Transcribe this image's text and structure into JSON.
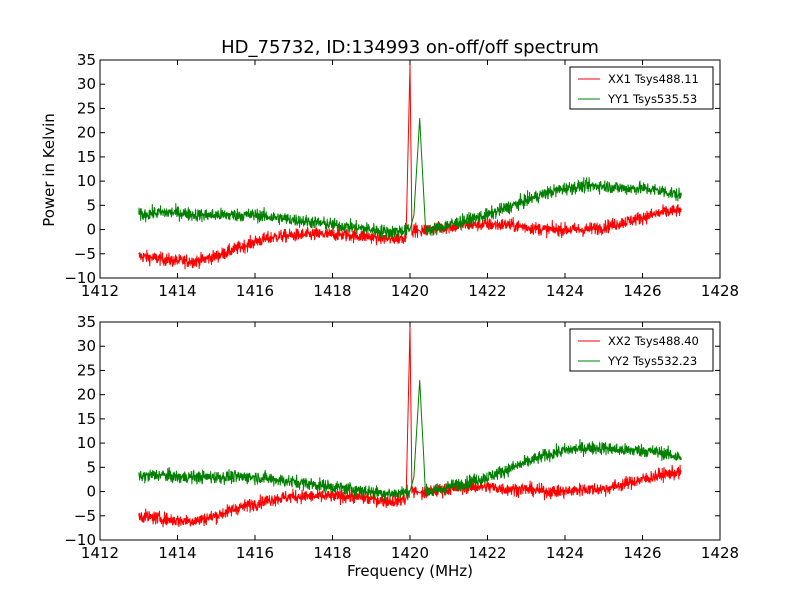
{
  "figure": {
    "title": "HD_75732, ID:134993 on-off/off spectrum",
    "xlabel": "Frequency (MHz)",
    "ylabel": "Power in Kelvin"
  },
  "chart_data": [
    {
      "type": "line",
      "title": "HD_75732, ID:134993 on-off/off spectrum",
      "xlabel": "",
      "ylabel": "Power in Kelvin",
      "xlim": [
        1412,
        1428
      ],
      "ylim": [
        -10,
        35
      ],
      "x_ticks": [
        "1412",
        "1414",
        "1416",
        "1418",
        "1420",
        "1422",
        "1424",
        "1426",
        "1428"
      ],
      "y_ticks": [
        "−10",
        "−5",
        "0",
        "5",
        "10",
        "15",
        "20",
        "25",
        "30",
        "35"
      ],
      "grid": false,
      "legend_position": "top-right",
      "series": [
        {
          "name": "XX1 Tsys488.11",
          "color": "#ff0000",
          "noise": 1.3,
          "x": [
            1413.0,
            1413.5,
            1414.0,
            1414.5,
            1415.0,
            1415.5,
            1416.0,
            1416.5,
            1417.0,
            1417.5,
            1418.0,
            1418.5,
            1419.0,
            1419.5,
            1419.9,
            1420.0,
            1420.05,
            1420.2,
            1420.3,
            1420.5,
            1421.0,
            1421.5,
            1422.0,
            1422.5,
            1423.0,
            1423.5,
            1424.0,
            1424.5,
            1425.0,
            1425.5,
            1426.0,
            1426.5,
            1427.0
          ],
          "y": [
            -5.5,
            -6.0,
            -6.5,
            -6.5,
            -5.5,
            -4.0,
            -2.5,
            -1.5,
            -1.2,
            -1.0,
            -1.0,
            -1.2,
            -1.5,
            -2.0,
            -1.5,
            34.0,
            0.0,
            0.0,
            -0.5,
            0.0,
            0.5,
            1.0,
            1.0,
            1.0,
            0.5,
            0.0,
            0.0,
            0.0,
            0.5,
            1.5,
            2.5,
            3.5,
            4.0
          ]
        },
        {
          "name": "YY1 Tsys535.53",
          "color": "#008000",
          "noise": 1.3,
          "x": [
            1413.0,
            1413.5,
            1414.0,
            1414.5,
            1415.0,
            1415.5,
            1416.0,
            1416.5,
            1417.0,
            1417.5,
            1418.0,
            1418.5,
            1419.0,
            1419.5,
            1420.0,
            1420.1,
            1420.25,
            1420.4,
            1420.6,
            1421.0,
            1421.5,
            1422.0,
            1422.5,
            1423.0,
            1423.5,
            1424.0,
            1424.5,
            1425.0,
            1425.5,
            1426.0,
            1426.5,
            1427.0
          ],
          "y": [
            3.0,
            3.5,
            3.5,
            3.0,
            3.0,
            3.0,
            3.0,
            2.5,
            2.0,
            1.5,
            1.0,
            0.5,
            0.0,
            -0.5,
            0.0,
            3.0,
            23.0,
            0.0,
            0.0,
            1.0,
            2.0,
            3.0,
            4.5,
            6.0,
            7.5,
            8.5,
            9.0,
            9.0,
            8.5,
            8.5,
            8.0,
            7.0
          ]
        }
      ]
    },
    {
      "type": "line",
      "title": "",
      "xlabel": "Frequency (MHz)",
      "ylabel": "",
      "xlim": [
        1412,
        1428
      ],
      "ylim": [
        -10,
        35
      ],
      "x_ticks": [
        "1412",
        "1414",
        "1416",
        "1418",
        "1420",
        "1422",
        "1424",
        "1426",
        "1428"
      ],
      "y_ticks": [
        "−10",
        "−5",
        "0",
        "5",
        "10",
        "15",
        "20",
        "25",
        "30",
        "35"
      ],
      "grid": false,
      "legend_position": "top-right",
      "series": [
        {
          "name": "XX2 Tsys488.40",
          "color": "#ff0000",
          "noise": 1.3,
          "x": [
            1413.0,
            1413.5,
            1414.0,
            1414.5,
            1415.0,
            1415.5,
            1416.0,
            1416.5,
            1417.0,
            1417.5,
            1418.0,
            1418.5,
            1419.0,
            1419.5,
            1419.9,
            1420.0,
            1420.05,
            1420.2,
            1420.3,
            1420.5,
            1421.0,
            1421.5,
            1422.0,
            1422.5,
            1423.0,
            1423.5,
            1424.0,
            1424.5,
            1425.0,
            1425.5,
            1426.0,
            1426.5,
            1427.0
          ],
          "y": [
            -5.0,
            -5.5,
            -6.0,
            -6.0,
            -5.0,
            -3.5,
            -2.5,
            -1.5,
            -1.0,
            -1.0,
            -1.0,
            -1.0,
            -1.5,
            -2.0,
            -1.5,
            34.0,
            0.0,
            0.0,
            -0.5,
            0.0,
            0.5,
            1.0,
            1.0,
            0.5,
            0.5,
            0.0,
            0.0,
            0.5,
            0.5,
            1.5,
            2.5,
            3.5,
            4.0
          ]
        },
        {
          "name": "YY2 Tsys532.23",
          "color": "#008000",
          "noise": 1.3,
          "x": [
            1413.0,
            1413.5,
            1414.0,
            1414.5,
            1415.0,
            1415.5,
            1416.0,
            1416.5,
            1417.0,
            1417.5,
            1418.0,
            1418.5,
            1419.0,
            1419.5,
            1420.0,
            1420.1,
            1420.25,
            1420.4,
            1420.6,
            1421.0,
            1421.5,
            1422.0,
            1422.5,
            1423.0,
            1423.5,
            1424.0,
            1424.5,
            1425.0,
            1425.5,
            1426.0,
            1426.5,
            1427.0
          ],
          "y": [
            3.0,
            3.5,
            3.0,
            3.0,
            3.0,
            3.0,
            3.0,
            2.5,
            2.0,
            1.5,
            1.0,
            0.5,
            0.0,
            -0.5,
            0.0,
            3.0,
            23.0,
            0.0,
            0.0,
            1.0,
            2.0,
            3.0,
            4.5,
            6.0,
            7.5,
            8.5,
            9.0,
            9.0,
            8.5,
            8.5,
            8.0,
            7.0
          ]
        }
      ]
    }
  ]
}
